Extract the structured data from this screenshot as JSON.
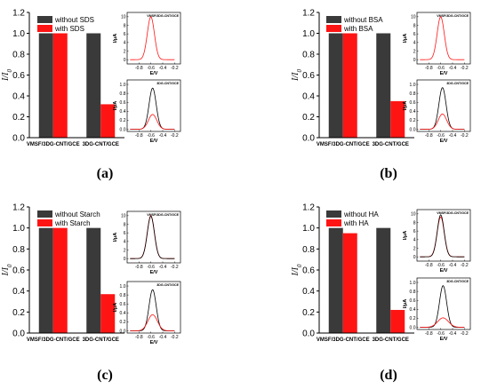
{
  "chart_data": [
    {
      "type": "bar",
      "panel_label": "(a)",
      "ylabel": "I/I0",
      "ylim": [
        0,
        1.2
      ],
      "yticks": [
        "0.0",
        "0.2",
        "0.4",
        "0.6",
        "0.8",
        "1.0",
        "1.2"
      ],
      "categories": [
        "VMSF/3DG-CNT/GCE",
        "3DG-CNT/GCE"
      ],
      "series": [
        {
          "name": "without SDS",
          "color": "#3a3a3a",
          "values": [
            1.0,
            1.0
          ]
        },
        {
          "name": "with SDS",
          "color": "#ff1414",
          "values": [
            1.0,
            0.32
          ]
        }
      ],
      "insets": [
        {
          "title": "VMSF/3DG-CNT/GCE",
          "type": "line",
          "ylabel": "I/μA",
          "xlabel": "E/V",
          "xlim": [
            -1.0,
            -0.1
          ],
          "ylim": [
            -1,
            11
          ],
          "xticks": [
            "-0.8",
            "-0.6",
            "-0.4",
            "-0.2"
          ],
          "yticks": [
            "0",
            "2",
            "4",
            "6",
            "8",
            "10"
          ],
          "series": [
            {
              "peak": 10,
              "center": -0.6,
              "width": 0.06,
              "color": "#ff1414"
            }
          ]
        },
        {
          "title": "3DG-CNT/GCE",
          "type": "line",
          "ylabel": "I/μA",
          "xlabel": "E/V",
          "xlim": [
            -1.0,
            -0.1
          ],
          "ylim": [
            -0.05,
            1.1
          ],
          "xticks": [
            "-0.8",
            "-0.6",
            "-0.4",
            "-0.2"
          ],
          "yticks": [
            "0.0",
            "0.2",
            "0.4",
            "0.6",
            "0.8",
            "1.0"
          ],
          "series": [
            {
              "peak": 0.92,
              "center": -0.57,
              "width": 0.06,
              "color": "#000000"
            },
            {
              "peak": 0.33,
              "center": -0.57,
              "width": 0.07,
              "color": "#ff1414"
            }
          ]
        }
      ]
    },
    {
      "type": "bar",
      "panel_label": "(b)",
      "ylabel": "I/I0",
      "ylim": [
        0,
        1.2
      ],
      "yticks": [
        "0.0",
        "0.2",
        "0.4",
        "0.6",
        "0.8",
        "1.0",
        "1.2"
      ],
      "categories": [
        "VMSF/3DG-CNT/GCE",
        "3DG-CNT/GCE"
      ],
      "series": [
        {
          "name": "without BSA",
          "color": "#3a3a3a",
          "values": [
            1.0,
            1.0
          ]
        },
        {
          "name": "with BSA",
          "color": "#ff1414",
          "values": [
            1.0,
            0.35
          ]
        }
      ],
      "insets": [
        {
          "title": "VMSF/3DG-CNT/GCE",
          "type": "line",
          "ylabel": "I/μA",
          "xlabel": "E/V",
          "xlim": [
            -1.0,
            -0.1
          ],
          "ylim": [
            -1,
            11
          ],
          "xticks": [
            "-0.8",
            "-0.6",
            "-0.4",
            "-0.2"
          ],
          "yticks": [
            "0",
            "2",
            "4",
            "6",
            "8",
            "10"
          ],
          "series": [
            {
              "peak": 10,
              "center": -0.6,
              "width": 0.06,
              "color": "#ff1414"
            }
          ]
        },
        {
          "title": "3DG-CNT/GCE",
          "type": "line",
          "ylabel": "I/μA",
          "xlabel": "E/V",
          "xlim": [
            -1.0,
            -0.1
          ],
          "ylim": [
            -0.05,
            1.1
          ],
          "xticks": [
            "-0.8",
            "-0.6",
            "-0.4",
            "-0.2"
          ],
          "yticks": [
            "0.0",
            "0.2",
            "0.4",
            "0.6",
            "0.8",
            "1.0"
          ],
          "series": [
            {
              "peak": 0.93,
              "center": -0.57,
              "width": 0.06,
              "color": "#000000"
            },
            {
              "peak": 0.34,
              "center": -0.57,
              "width": 0.07,
              "color": "#ff1414"
            }
          ]
        }
      ]
    },
    {
      "type": "bar",
      "panel_label": "(c)",
      "ylabel": "I/I0",
      "ylim": [
        0,
        1.2
      ],
      "yticks": [
        "0.0",
        "0.2",
        "0.4",
        "0.6",
        "0.8",
        "1.0",
        "1.2"
      ],
      "categories": [
        "VMSF/3DG-CNT/GCE",
        "3DG-CNT/GCE"
      ],
      "series": [
        {
          "name": "without Starch",
          "color": "#3a3a3a",
          "values": [
            1.0,
            1.0
          ]
        },
        {
          "name": "with Starch",
          "color": "#ff1414",
          "values": [
            1.0,
            0.37
          ]
        }
      ],
      "insets": [
        {
          "title": "VMSF/3DG-CNT/GCE",
          "type": "line",
          "ylabel": "I/μA",
          "xlabel": "E/V",
          "xlim": [
            -1.0,
            -0.1
          ],
          "ylim": [
            -1,
            11
          ],
          "xticks": [
            "-0.8",
            "-0.6",
            "-0.4",
            "-0.2"
          ],
          "yticks": [
            "0",
            "2",
            "4",
            "6",
            "8",
            "10"
          ],
          "series": [
            {
              "peak": 10,
              "center": -0.6,
              "width": 0.06,
              "color": "#ff1414"
            },
            {
              "peak": 9.9,
              "center": -0.6,
              "width": 0.06,
              "color": "#000000"
            }
          ]
        },
        {
          "title": "3DG-CNT/GCE",
          "type": "line",
          "ylabel": "I/μA",
          "xlabel": "E/V",
          "xlim": [
            -1.0,
            -0.1
          ],
          "ylim": [
            -0.05,
            1.1
          ],
          "xticks": [
            "-0.8",
            "-0.6",
            "-0.4",
            "-0.2"
          ],
          "yticks": [
            "0.0",
            "0.2",
            "0.4",
            "0.6",
            "0.8",
            "1.0"
          ],
          "series": [
            {
              "peak": 0.92,
              "center": -0.57,
              "width": 0.06,
              "color": "#000000"
            },
            {
              "peak": 0.36,
              "center": -0.57,
              "width": 0.08,
              "color": "#ff1414"
            }
          ]
        }
      ]
    },
    {
      "type": "bar",
      "panel_label": "(d)",
      "ylabel": "I/I0",
      "ylim": [
        0,
        1.2
      ],
      "yticks": [
        "0.0",
        "0.2",
        "0.4",
        "0.6",
        "0.8",
        "1.0",
        "1.2"
      ],
      "categories": [
        "VMSF/3DG-CNT/GCE",
        "3DG-CNT/GCE"
      ],
      "series": [
        {
          "name": "without HA",
          "color": "#3a3a3a",
          "values": [
            1.0,
            1.0
          ]
        },
        {
          "name": "with HA",
          "color": "#ff1414",
          "values": [
            0.95,
            0.22
          ]
        }
      ],
      "insets": [
        {
          "title": "VMSF/3DG-CNT/GCE",
          "type": "line",
          "ylabel": "I/μA",
          "xlabel": "E/V",
          "xlim": [
            -1.0,
            -0.1
          ],
          "ylim": [
            -1,
            11
          ],
          "xticks": [
            "-0.8",
            "-0.6",
            "-0.4",
            "-0.2"
          ],
          "yticks": [
            "0",
            "2",
            "4",
            "6",
            "8",
            "10"
          ],
          "series": [
            {
              "peak": 9.3,
              "center": -0.6,
              "width": 0.06,
              "color": "#ff1414"
            },
            {
              "peak": 9.8,
              "center": -0.6,
              "width": 0.058,
              "color": "#000000"
            }
          ]
        },
        {
          "title": "3DG-CNT/GCE",
          "type": "line",
          "ylabel": "I/μA",
          "xlabel": "E/V",
          "xlim": [
            -1.0,
            -0.1
          ],
          "ylim": [
            -0.05,
            1.1
          ],
          "xticks": [
            "-0.8",
            "-0.6",
            "-0.4",
            "-0.2"
          ],
          "yticks": [
            "0.0",
            "0.2",
            "0.4",
            "0.6",
            "0.8",
            "1.0"
          ],
          "series": [
            {
              "peak": 0.93,
              "center": -0.56,
              "width": 0.06,
              "color": "#000000"
            },
            {
              "peak": 0.21,
              "center": -0.56,
              "width": 0.09,
              "color": "#ff1414"
            }
          ]
        }
      ]
    }
  ]
}
